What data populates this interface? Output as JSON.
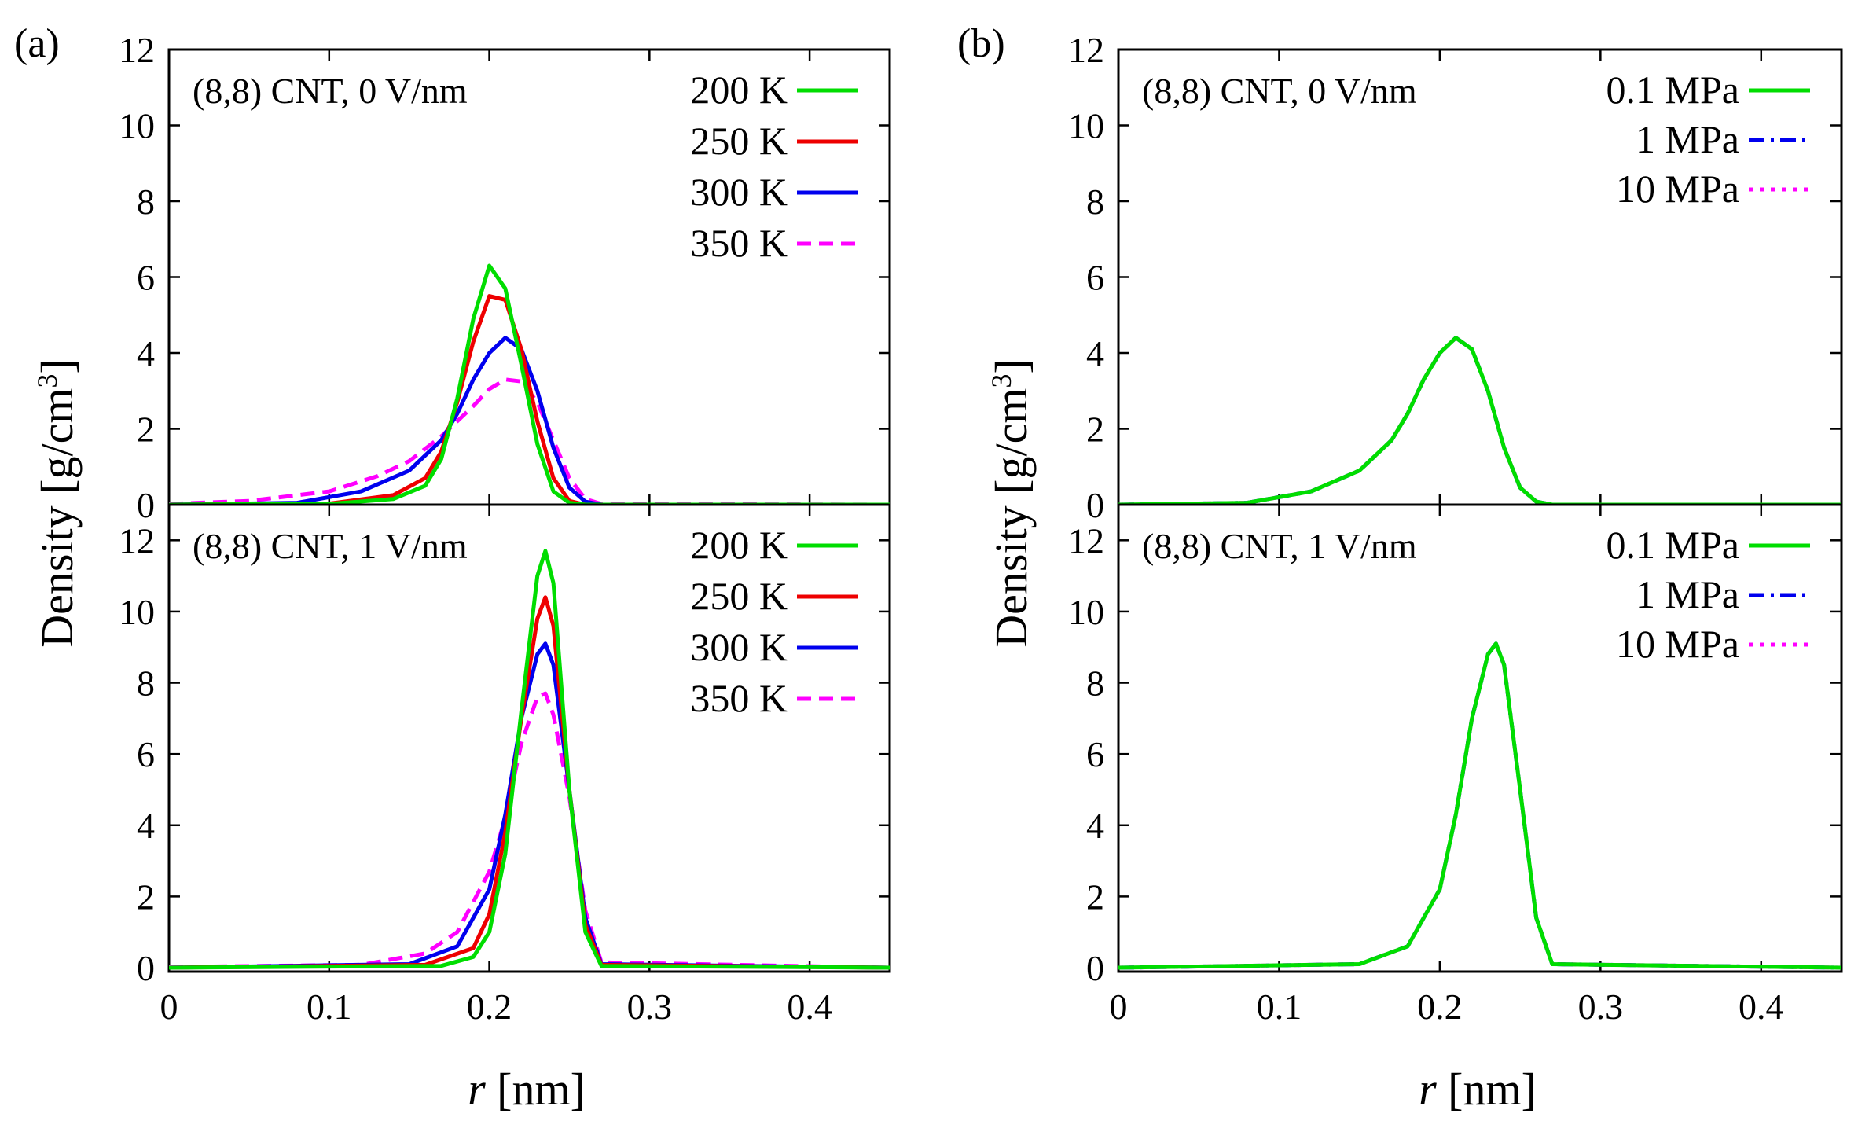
{
  "figure": {
    "ylabel_main": "Density [g/cm",
    "ylabel_sup": "3",
    "ylabel_close": "]",
    "xlabel_italic": "r",
    "xlabel_rest": " [nm]"
  },
  "chart_data": [
    {
      "id": "a-top",
      "panel_label": "(a)",
      "type": "line",
      "annotation": "(8,8) CNT, 0 V/nm",
      "xlim": [
        0,
        0.45
      ],
      "ylim": [
        0,
        12
      ],
      "xticks": [
        0,
        0.1,
        0.2,
        0.3,
        0.4
      ],
      "xtick_labels": [
        "0",
        "0.1",
        "0.2",
        "0.3",
        "0.4"
      ],
      "yticks": [
        0,
        2,
        4,
        6,
        8,
        10,
        12
      ],
      "ytick_labels": [
        "0",
        "2",
        "4",
        "6",
        "8",
        "10",
        "12"
      ],
      "series": [
        {
          "name": "200 K",
          "color": "#00dd00",
          "dash": "solid",
          "x": [
            0,
            0.1,
            0.14,
            0.16,
            0.17,
            0.18,
            0.19,
            0.2,
            0.21,
            0.22,
            0.23,
            0.24,
            0.25,
            0.26,
            0.45
          ],
          "values": [
            0,
            0.02,
            0.15,
            0.5,
            1.2,
            2.8,
            4.9,
            6.3,
            5.7,
            3.7,
            1.6,
            0.35,
            0.05,
            0,
            0
          ]
        },
        {
          "name": "250 K",
          "color": "#ee0000",
          "dash": "solid",
          "x": [
            0,
            0.1,
            0.14,
            0.16,
            0.17,
            0.18,
            0.19,
            0.2,
            0.21,
            0.22,
            0.23,
            0.24,
            0.25,
            0.26,
            0.45
          ],
          "values": [
            0,
            0.03,
            0.25,
            0.7,
            1.4,
            2.7,
            4.3,
            5.5,
            5.4,
            4.1,
            2.2,
            0.7,
            0.1,
            0,
            0
          ]
        },
        {
          "name": "300 K",
          "color": "#0000ee",
          "dash": "solid",
          "x": [
            0,
            0.08,
            0.12,
            0.15,
            0.17,
            0.18,
            0.19,
            0.2,
            0.21,
            0.22,
            0.23,
            0.24,
            0.25,
            0.26,
            0.27,
            0.45
          ],
          "values": [
            0,
            0.05,
            0.35,
            0.9,
            1.7,
            2.4,
            3.3,
            4.0,
            4.4,
            4.1,
            3.0,
            1.5,
            0.45,
            0.08,
            0,
            0
          ]
        },
        {
          "name": "350 K",
          "color": "#ff00ff",
          "dash": "dashed",
          "x": [
            0,
            0.05,
            0.1,
            0.13,
            0.15,
            0.17,
            0.19,
            0.2,
            0.21,
            0.22,
            0.23,
            0.24,
            0.25,
            0.26,
            0.27,
            0.45
          ],
          "values": [
            0.02,
            0.1,
            0.35,
            0.75,
            1.15,
            1.8,
            2.6,
            3.05,
            3.3,
            3.25,
            2.7,
            1.7,
            0.7,
            0.15,
            0.02,
            0
          ]
        }
      ]
    },
    {
      "id": "a-bottom",
      "panel_label": "",
      "type": "line",
      "annotation": "(8,8) CNT, 1 V/nm",
      "xlim": [
        0,
        0.45
      ],
      "ylim": [
        0,
        13
      ],
      "xticks": [
        0,
        0.1,
        0.2,
        0.3,
        0.4
      ],
      "xtick_labels": [
        "0",
        "0.1",
        "0.2",
        "0.3",
        "0.4"
      ],
      "yticks": [
        0,
        2,
        4,
        6,
        8,
        10,
        12
      ],
      "ytick_labels": [
        "0",
        "2",
        "4",
        "6",
        "8",
        "10",
        "12"
      ],
      "series": [
        {
          "name": "200 K",
          "color": "#00dd00",
          "dash": "solid",
          "x": [
            0,
            0.17,
            0.19,
            0.2,
            0.21,
            0.22,
            0.23,
            0.235,
            0.24,
            0.25,
            0.26,
            0.27,
            0.45
          ],
          "values": [
            0,
            0.05,
            0.3,
            1.0,
            3.2,
            7.2,
            11.0,
            11.7,
            10.8,
            5.0,
            1.0,
            0.05,
            0
          ]
        },
        {
          "name": "250 K",
          "color": "#ee0000",
          "dash": "solid",
          "x": [
            0,
            0.16,
            0.19,
            0.2,
            0.21,
            0.22,
            0.23,
            0.235,
            0.24,
            0.25,
            0.26,
            0.27,
            0.45
          ],
          "values": [
            0,
            0.08,
            0.55,
            1.5,
            3.8,
            7.0,
            9.8,
            10.4,
            9.6,
            5.0,
            1.2,
            0.08,
            0
          ]
        },
        {
          "name": "300 K",
          "color": "#0000ee",
          "dash": "solid",
          "x": [
            0,
            0.15,
            0.18,
            0.2,
            0.21,
            0.22,
            0.23,
            0.235,
            0.24,
            0.25,
            0.26,
            0.27,
            0.45
          ],
          "values": [
            0,
            0.1,
            0.6,
            2.2,
            4.3,
            7.0,
            8.8,
            9.1,
            8.5,
            5.0,
            1.4,
            0.1,
            0
          ]
        },
        {
          "name": "350 K",
          "color": "#ff00ff",
          "dash": "dashed",
          "x": [
            0,
            0.12,
            0.16,
            0.18,
            0.2,
            0.21,
            0.22,
            0.23,
            0.235,
            0.24,
            0.25,
            0.26,
            0.27,
            0.45
          ],
          "values": [
            0.02,
            0.08,
            0.4,
            1.0,
            2.7,
            4.2,
            6.3,
            7.6,
            7.7,
            7.1,
            4.8,
            1.6,
            0.15,
            0
          ]
        }
      ]
    },
    {
      "id": "b-top",
      "panel_label": "(b)",
      "type": "line",
      "annotation": "(8,8) CNT, 0 V/nm",
      "xlim": [
        0,
        0.45
      ],
      "ylim": [
        0,
        12
      ],
      "xticks": [
        0,
        0.1,
        0.2,
        0.3,
        0.4
      ],
      "xtick_labels": [
        "0",
        "0.1",
        "0.2",
        "0.3",
        "0.4"
      ],
      "yticks": [
        0,
        2,
        4,
        6,
        8,
        10,
        12
      ],
      "ytick_labels": [
        "0",
        "2",
        "4",
        "6",
        "8",
        "10",
        "12"
      ],
      "series": [
        {
          "name": "0.1 MPa",
          "color": "#00dd00",
          "dash": "solid",
          "x": [
            0,
            0.08,
            0.12,
            0.15,
            0.17,
            0.18,
            0.19,
            0.2,
            0.21,
            0.22,
            0.23,
            0.24,
            0.25,
            0.26,
            0.27,
            0.45
          ],
          "values": [
            0,
            0.05,
            0.35,
            0.9,
            1.7,
            2.4,
            3.3,
            4.0,
            4.4,
            4.1,
            3.0,
            1.5,
            0.45,
            0.08,
            0,
            0
          ]
        },
        {
          "name": "1 MPa",
          "color": "#0000ee",
          "dash": "dashdot",
          "x": [
            0,
            0.08,
            0.12,
            0.15,
            0.17,
            0.18,
            0.19,
            0.2,
            0.21,
            0.22,
            0.23,
            0.24,
            0.25,
            0.26,
            0.27,
            0.45
          ],
          "values": [
            0,
            0.05,
            0.35,
            0.9,
            1.7,
            2.4,
            3.3,
            4.0,
            4.4,
            4.1,
            3.0,
            1.5,
            0.45,
            0.08,
            0,
            0
          ]
        },
        {
          "name": "10 MPa",
          "color": "#ff00ff",
          "dash": "dotted",
          "x": [
            0,
            0.08,
            0.12,
            0.15,
            0.17,
            0.18,
            0.19,
            0.2,
            0.21,
            0.22,
            0.23,
            0.24,
            0.25,
            0.26,
            0.27,
            0.45
          ],
          "values": [
            0,
            0.05,
            0.35,
            0.9,
            1.7,
            2.4,
            3.3,
            4.0,
            4.4,
            4.1,
            3.0,
            1.5,
            0.45,
            0.08,
            0,
            0
          ]
        }
      ]
    },
    {
      "id": "b-bottom",
      "panel_label": "",
      "type": "line",
      "annotation": "(8,8) CNT, 1 V/nm",
      "xlim": [
        0,
        0.45
      ],
      "ylim": [
        0,
        13
      ],
      "xticks": [
        0,
        0.1,
        0.2,
        0.3,
        0.4
      ],
      "xtick_labels": [
        "0",
        "0.1",
        "0.2",
        "0.3",
        "0.4"
      ],
      "yticks": [
        0,
        2,
        4,
        6,
        8,
        10,
        12
      ],
      "ytick_labels": [
        "0",
        "2",
        "4",
        "6",
        "8",
        "10",
        "12"
      ],
      "series": [
        {
          "name": "0.1 MPa",
          "color": "#00dd00",
          "dash": "solid",
          "x": [
            0,
            0.15,
            0.18,
            0.2,
            0.21,
            0.22,
            0.23,
            0.235,
            0.24,
            0.25,
            0.26,
            0.27,
            0.45
          ],
          "values": [
            0,
            0.1,
            0.6,
            2.2,
            4.3,
            7.0,
            8.8,
            9.1,
            8.5,
            5.0,
            1.4,
            0.1,
            0
          ]
        },
        {
          "name": "1 MPa",
          "color": "#0000ee",
          "dash": "dashdot",
          "x": [
            0,
            0.15,
            0.18,
            0.2,
            0.21,
            0.22,
            0.23,
            0.235,
            0.24,
            0.25,
            0.26,
            0.27,
            0.45
          ],
          "values": [
            0,
            0.1,
            0.6,
            2.2,
            4.3,
            7.0,
            8.8,
            9.1,
            8.5,
            5.0,
            1.4,
            0.1,
            0
          ]
        },
        {
          "name": "10 MPa",
          "color": "#ff00ff",
          "dash": "dotted",
          "x": [
            0,
            0.15,
            0.18,
            0.2,
            0.21,
            0.22,
            0.23,
            0.235,
            0.24,
            0.25,
            0.26,
            0.27,
            0.45
          ],
          "values": [
            0,
            0.1,
            0.6,
            2.2,
            4.3,
            7.0,
            8.8,
            9.1,
            8.5,
            5.0,
            1.4,
            0.1,
            0
          ]
        }
      ]
    }
  ]
}
